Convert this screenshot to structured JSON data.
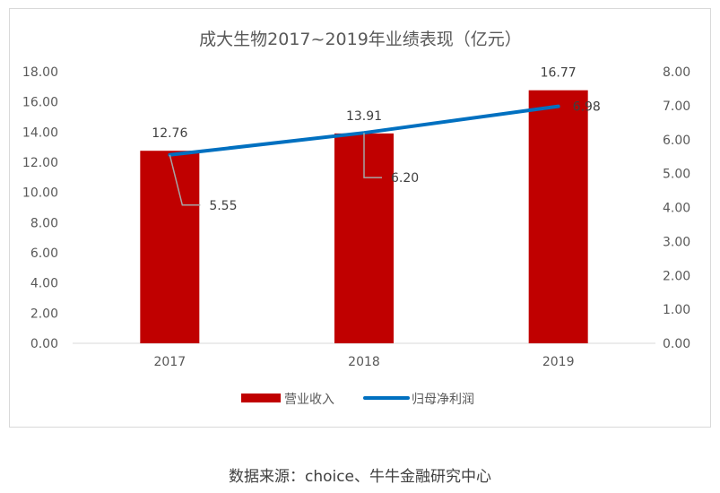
{
  "chart_data": {
    "type": "bar",
    "title": "成大生物2017~2019年业绩表现（亿元）",
    "categories": [
      "2017",
      "2018",
      "2019"
    ],
    "series": [
      {
        "name": "营业收入",
        "type": "bar",
        "axis": "left",
        "color": "#c00000",
        "values": [
          12.76,
          13.91,
          16.77
        ],
        "labels": [
          "12.76",
          "13.91",
          "16.77"
        ]
      },
      {
        "name": "归母净利润",
        "type": "line",
        "axis": "right",
        "color": "#0070c0",
        "values": [
          5.55,
          6.2,
          6.98
        ],
        "labels": [
          "5.55",
          "6.20",
          "6.98"
        ]
      }
    ],
    "y_left": {
      "min": 0,
      "max": 18,
      "step": 2,
      "ticks": [
        "0.00",
        "2.00",
        "4.00",
        "6.00",
        "8.00",
        "10.00",
        "12.00",
        "14.00",
        "16.00",
        "18.00"
      ]
    },
    "y_right": {
      "min": 0,
      "max": 8,
      "step": 1,
      "ticks": [
        "0.00",
        "1.00",
        "2.00",
        "3.00",
        "4.00",
        "5.00",
        "6.00",
        "7.00",
        "8.00"
      ]
    },
    "grid": false,
    "legend_position": "bottom"
  },
  "source": "数据来源：choice、牛牛金融研究中心"
}
